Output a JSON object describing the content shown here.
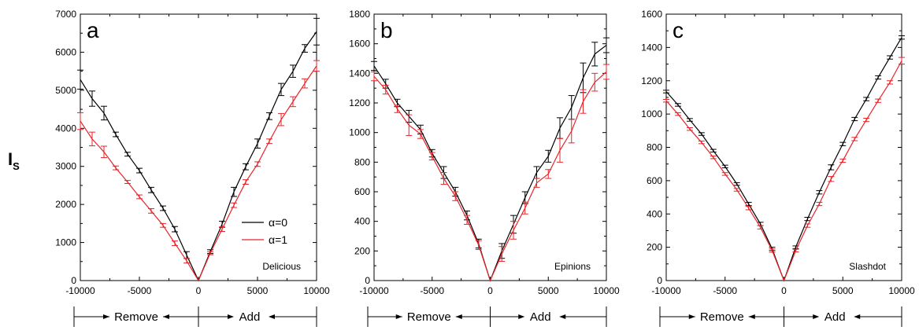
{
  "y_axis_label": "I",
  "y_axis_label_sub": "S",
  "colors": {
    "alpha0": "#000000",
    "alpha1": "#e8242a"
  },
  "legend": [
    "α=0",
    "α=1"
  ],
  "chart_data": [
    {
      "type": "line",
      "panel_label": "a",
      "dataset_label": "Delicious",
      "xlim": [
        -10000,
        10000
      ],
      "ylim": [
        0,
        7000
      ],
      "xticks": [
        -10000,
        -5000,
        0,
        5000,
        10000
      ],
      "yticks": [
        0,
        1000,
        2000,
        3000,
        4000,
        5000,
        6000,
        7000
      ],
      "regions": [
        "Remove",
        "Add"
      ],
      "x": [
        -10000,
        -9000,
        -8000,
        -7000,
        -6000,
        -5000,
        -4000,
        -3000,
        -2000,
        -1000,
        0,
        1000,
        2000,
        3000,
        4000,
        5000,
        6000,
        7000,
        8000,
        9000,
        10000
      ],
      "legend_position": "right-middle",
      "series": [
        {
          "name": "α=0",
          "values": [
            5280,
            4780,
            4400,
            3840,
            3320,
            2890,
            2380,
            1900,
            1350,
            670,
            0,
            760,
            1480,
            2330,
            2990,
            3600,
            4320,
            5020,
            5500,
            6100,
            6540
          ],
          "errors": [
            250,
            200,
            180,
            60,
            50,
            60,
            70,
            60,
            70,
            90,
            0,
            50,
            80,
            120,
            80,
            120,
            90,
            160,
            160,
            100,
            350
          ]
        },
        {
          "name": "α=1",
          "values": [
            4190,
            3720,
            3380,
            2960,
            2590,
            2200,
            1830,
            1450,
            980,
            520,
            0,
            720,
            1350,
            1980,
            2590,
            3060,
            3660,
            4230,
            4700,
            5180,
            5640
          ],
          "errors": [
            220,
            180,
            150,
            50,
            40,
            50,
            60,
            50,
            60,
            60,
            0,
            40,
            60,
            60,
            60,
            60,
            60,
            160,
            130,
            120,
            140
          ]
        }
      ]
    },
    {
      "type": "line",
      "panel_label": "b",
      "dataset_label": "Epinions",
      "xlim": [
        -10000,
        10000
      ],
      "ylim": [
        0,
        1800
      ],
      "xticks": [
        -10000,
        -5000,
        0,
        5000,
        10000
      ],
      "yticks": [
        0,
        200,
        400,
        600,
        800,
        1000,
        1200,
        1400,
        1600,
        1800
      ],
      "regions": [
        "Remove",
        "Add"
      ],
      "x": [
        -10000,
        -9000,
        -8000,
        -7000,
        -6000,
        -5000,
        -4000,
        -3000,
        -2000,
        -1000,
        0,
        1000,
        2000,
        3000,
        4000,
        5000,
        6000,
        7000,
        8000,
        9000,
        10000
      ],
      "series": [
        {
          "name": "α=0",
          "values": [
            1450,
            1330,
            1200,
            1110,
            1020,
            860,
            730,
            600,
            440,
            250,
            0,
            200,
            380,
            560,
            730,
            840,
            1030,
            1170,
            1370,
            1530,
            1590
          ],
          "errors": [
            30,
            30,
            25,
            40,
            30,
            25,
            40,
            30,
            30,
            30,
            0,
            50,
            60,
            40,
            40,
            40,
            70,
            80,
            100,
            80,
            50
          ]
        },
        {
          "name": "α=1",
          "values": [
            1380,
            1290,
            1160,
            1050,
            990,
            840,
            690,
            570,
            410,
            240,
            0,
            180,
            340,
            490,
            660,
            720,
            880,
            1010,
            1210,
            1340,
            1410
          ],
          "errors": [
            30,
            30,
            25,
            70,
            30,
            25,
            40,
            30,
            30,
            30,
            0,
            50,
            60,
            40,
            30,
            30,
            80,
            80,
            80,
            60,
            50
          ]
        }
      ]
    },
    {
      "type": "line",
      "panel_label": "c",
      "dataset_label": "Slashdot",
      "xlim": [
        -10000,
        10000
      ],
      "ylim": [
        0,
        1600
      ],
      "xticks": [
        -10000,
        -5000,
        0,
        5000,
        10000
      ],
      "yticks": [
        0,
        200,
        400,
        600,
        800,
        1000,
        1200,
        1400,
        1600
      ],
      "regions": [
        "Remove",
        "Add"
      ],
      "x": [
        -10000,
        -9000,
        -8000,
        -7000,
        -6000,
        -5000,
        -4000,
        -3000,
        -2000,
        -1000,
        0,
        1000,
        2000,
        3000,
        4000,
        5000,
        6000,
        7000,
        8000,
        9000,
        10000
      ],
      "series": [
        {
          "name": "α=0",
          "values": [
            1135,
            1055,
            965,
            880,
            780,
            685,
            580,
            460,
            340,
            190,
            0,
            200,
            370,
            530,
            680,
            820,
            970,
            1090,
            1220,
            1340,
            1460
          ],
          "errors": [
            8,
            8,
            8,
            8,
            8,
            8,
            8,
            10,
            10,
            10,
            0,
            8,
            10,
            10,
            15,
            10,
            10,
            10,
            10,
            10,
            10
          ]
        },
        {
          "name": "α=1",
          "values": [
            1080,
            1000,
            910,
            830,
            740,
            640,
            545,
            435,
            320,
            180,
            0,
            180,
            330,
            460,
            610,
            720,
            850,
            965,
            1080,
            1190,
            1320
          ],
          "errors": [
            8,
            8,
            8,
            8,
            8,
            8,
            8,
            10,
            10,
            10,
            0,
            8,
            10,
            10,
            15,
            10,
            10,
            10,
            10,
            10,
            20
          ]
        }
      ]
    }
  ]
}
